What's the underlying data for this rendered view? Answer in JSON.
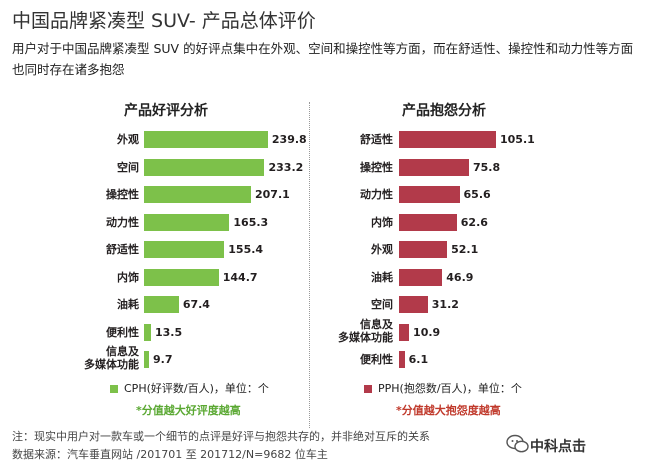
{
  "page": {
    "title": "中国品牌紧凑型 SUV- 产品总体评价",
    "subtitle": "用户对于中国品牌紧凑型 SUV 的好评点集中在外观、空间和操控性等方面，而在舒适性、操控性和动力性等方面也同时存在诸多抱怨",
    "footer_note": "注：现实中用户对一款车或一个细节的点评是好评与抱怨共存的，并非绝对互斥的关系",
    "footer_source": "数据来源：汽车垂直网站 /201701 至 201712/N=9682 位车主",
    "brand": "中科点击",
    "brand_icon": "wechat-icon"
  },
  "chart_data": [
    {
      "type": "bar",
      "orientation": "horizontal",
      "title": "产品好评分析",
      "categories": [
        "外观",
        "空间",
        "操控性",
        "动力性",
        "舒适性",
        "内饰",
        "油耗",
        "便利性",
        "信息及多媒体功能"
      ],
      "values": [
        239.8,
        233.2,
        207.1,
        165.3,
        155.4,
        144.7,
        67.4,
        13.5,
        9.7
      ],
      "value_labels": [
        "239.8",
        "233.2",
        "207.1",
        "165.3",
        "155.4",
        "144.7",
        "67.4",
        "13.5",
        "9.7"
      ],
      "color": "#7dc14a",
      "legend": "CPH(好评数/百人)，单位：个",
      "note": "*分值越大好评度越高",
      "note_color": "#5aa832",
      "xlim": [
        0,
        240
      ]
    },
    {
      "type": "bar",
      "orientation": "horizontal",
      "title": "产品抱怨分析",
      "categories": [
        "舒适性",
        "操控性",
        "动力性",
        "内饰",
        "外观",
        "油耗",
        "空间",
        "信息及多媒体功能",
        "便利性"
      ],
      "values": [
        105.1,
        75.8,
        65.6,
        62.6,
        52.1,
        46.9,
        31.2,
        10.9,
        6.1
      ],
      "value_labels": [
        "105.1",
        "75.8",
        "65.6",
        "62.6",
        "52.1",
        "46.9",
        "31.2",
        "10.9",
        "6.1"
      ],
      "color": "#b23a4a",
      "legend": "PPH(抱怨数/百人)，单位：个",
      "note": "*分值越大抱怨度越高",
      "note_color": "#c0392b",
      "xlim": [
        0,
        105.1
      ]
    }
  ]
}
